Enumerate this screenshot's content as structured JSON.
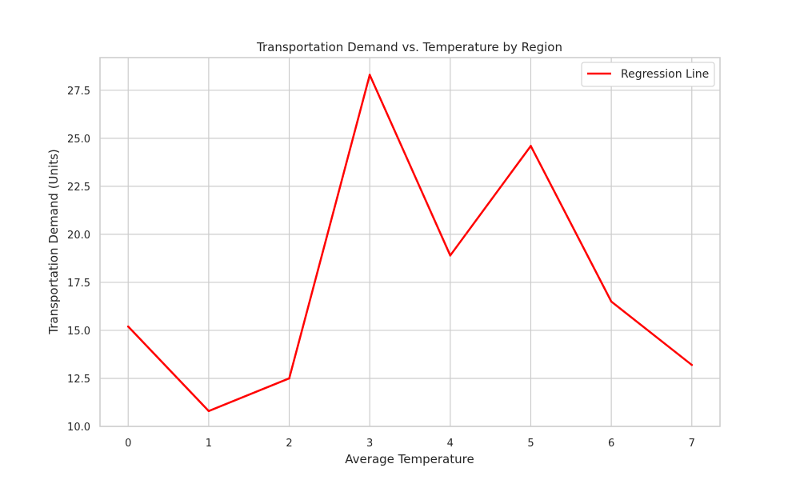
{
  "chart_data": {
    "type": "line",
    "title": "Transportation Demand vs. Temperature by Region",
    "xlabel": "Average Temperature",
    "ylabel": "Transportation Demand (Units)",
    "x": [
      0,
      1,
      2,
      3,
      4,
      5,
      6,
      7
    ],
    "series": [
      {
        "name": "Regression Line",
        "values": [
          15.2,
          10.8,
          12.5,
          28.3,
          18.9,
          24.6,
          16.5,
          13.2
        ],
        "color": "#ff0000"
      }
    ],
    "xlim": [
      -0.35,
      7.35
    ],
    "ylim": [
      10.0,
      29.2
    ],
    "xticks": [
      0,
      1,
      2,
      3,
      4,
      5,
      6,
      7
    ],
    "yticks": [
      10.0,
      12.5,
      15.0,
      17.5,
      20.0,
      22.5,
      25.0,
      27.5
    ],
    "yticklabels": [
      "10.0",
      "12.5",
      "15.0",
      "17.5",
      "20.0",
      "22.5",
      "25.0",
      "27.5"
    ],
    "grid": true,
    "legend_position": "top-right"
  }
}
